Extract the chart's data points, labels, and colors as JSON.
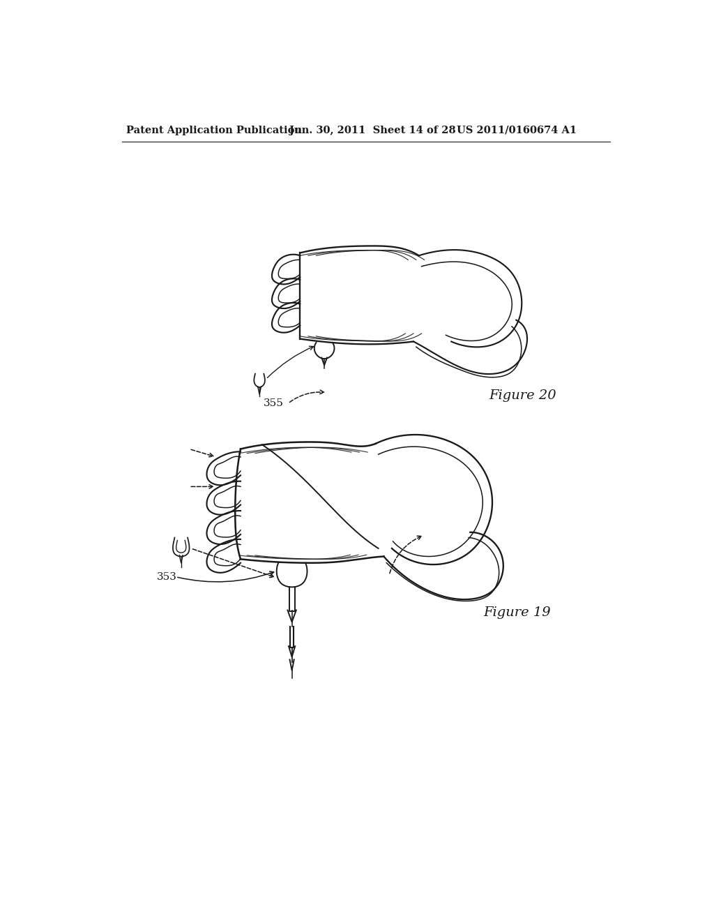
{
  "background_color": "#ffffff",
  "header_left": "Patent Application Publication",
  "header_mid": "Jun. 30, 2011  Sheet 14 of 28",
  "header_right": "US 2011/0160674 A1",
  "header_fontsize": 10.5,
  "figure20_label": "Figure 20",
  "figure19_label": "Figure 19",
  "label_355": "355",
  "label_353": "353",
  "line_color": "#1a1a1a",
  "line_width": 1.4,
  "fig_width": 10.24,
  "fig_height": 13.2,
  "dpi": 100
}
